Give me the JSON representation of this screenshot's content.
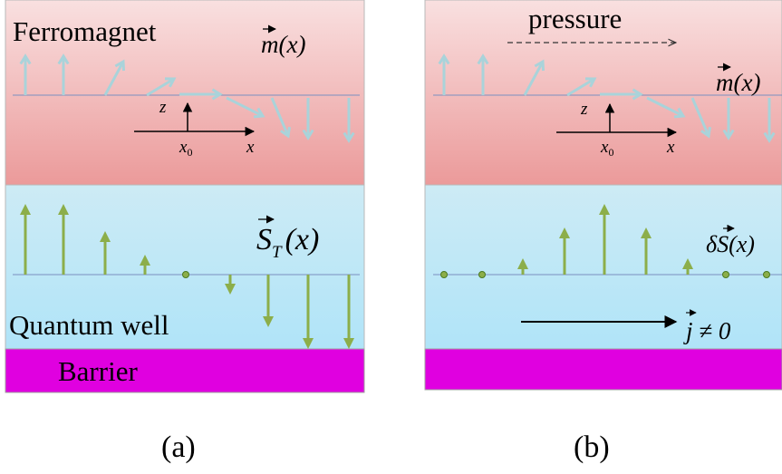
{
  "panels": {
    "a": {
      "caption": "(a)",
      "ferromagnet_label": "Ferromagnet",
      "magnetization_label": "m(x)",
      "spin_label_base": "S",
      "spin_label_sub": "T",
      "spin_label_arg": "(x)",
      "quantum_well_label": "Quantum well",
      "barrier_label": "Barrier",
      "axis_z": "z",
      "axis_x": "x",
      "axis_x0": "x",
      "axis_x0_sub": "0"
    },
    "b": {
      "caption": "(b)",
      "pressure_label": "pressure",
      "magnetization_label": "m(x)",
      "spin_label": "δS(x)",
      "current_label": "j ≠ 0",
      "axis_z": "z",
      "axis_x": "x",
      "axis_x0": "x",
      "axis_x0_sub": "0"
    }
  },
  "colors": {
    "ferromagnet_top": "#f9e0e0",
    "ferromagnet_bottom": "#eb9a9a",
    "well_top": "#c8eaf5",
    "well_bottom": "#b2e5f8",
    "barrier": "#e000e0",
    "magnet_arrow": "#a9d3da",
    "spin_arrow": "#8cae4a",
    "axis_line": "#7a8fbf",
    "frame": "#a0a0a0"
  }
}
